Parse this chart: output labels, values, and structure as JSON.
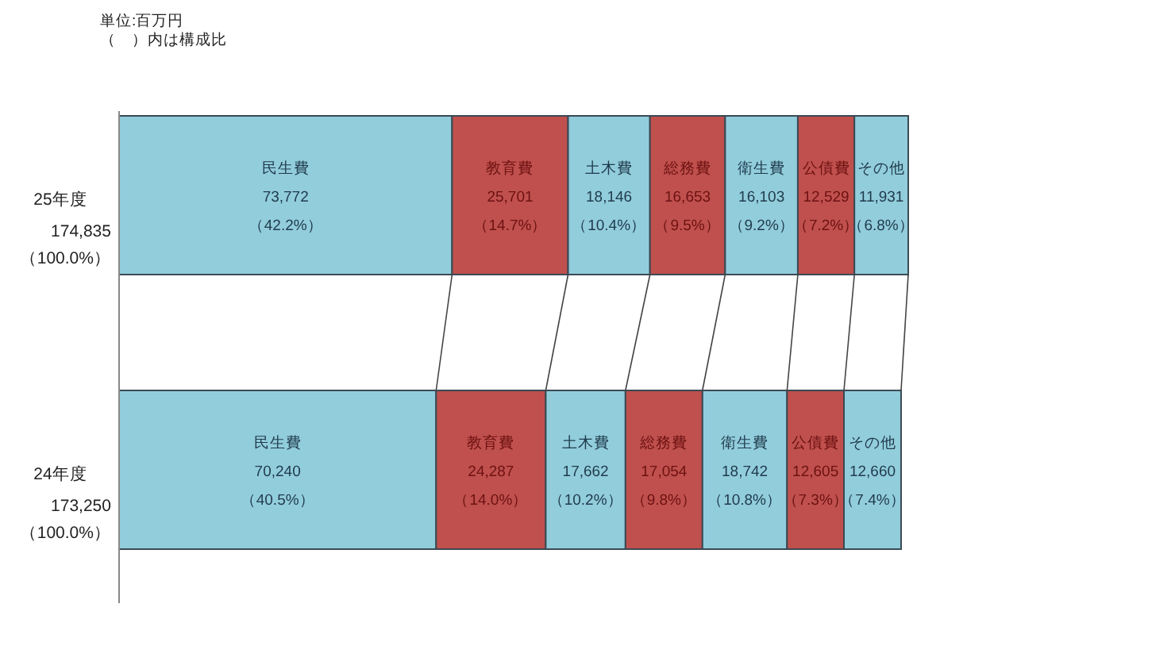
{
  "chart_data": {
    "type": "bar",
    "orientation": "horizontal",
    "stacked": true,
    "legend": false,
    "grid": false,
    "tick_labels": "y",
    "annotations": [
      "単位:百万円",
      "（　）内は構成比"
    ],
    "categories": [
      "25年度",
      "24年度"
    ],
    "totals": [
      "174,835\n（100.0%）",
      "173,250\n（100.0%）"
    ],
    "xlim": [
      0,
      174835
    ],
    "series": [
      {
        "name": "民生費",
        "color": "#92cddc",
        "values": [
          73772,
          70240
        ],
        "value_labels": [
          "73,772\n（42.2%）",
          "70,240\n（40.5%）"
        ]
      },
      {
        "name": "教育費",
        "color": "#c0504d",
        "values": [
          25701,
          24287
        ],
        "value_labels": [
          "25,701\n（14.7%）",
          "24,287\n（14.0%）"
        ]
      },
      {
        "name": "土木費",
        "color": "#92cddc",
        "values": [
          18146,
          17662
        ],
        "value_labels": [
          "18,146\n（10.4%）",
          "17,662\n（10.2%）"
        ]
      },
      {
        "name": "総務費",
        "color": "#c0504d",
        "values": [
          16653,
          17054
        ],
        "value_labels": [
          "16,653\n（9.5%）",
          "17,054\n（9.8%）"
        ]
      },
      {
        "name": "衛生費",
        "color": "#92cddc",
        "values": [
          16103,
          18742
        ],
        "value_labels": [
          "16,103\n（9.2%）",
          "18,742\n（10.8%）"
        ]
      },
      {
        "name": "公債費",
        "color": "#c0504d",
        "values": [
          12529,
          12605
        ],
        "value_labels": [
          "12,529\n（7.2%）",
          "12,605\n（7.3%）"
        ]
      },
      {
        "name": "その他",
        "color": "#92cddc",
        "values": [
          11931,
          12660
        ],
        "value_labels": [
          "11,931\n（6.8%）",
          "12,660\n（7.4%）"
        ]
      }
    ]
  }
}
